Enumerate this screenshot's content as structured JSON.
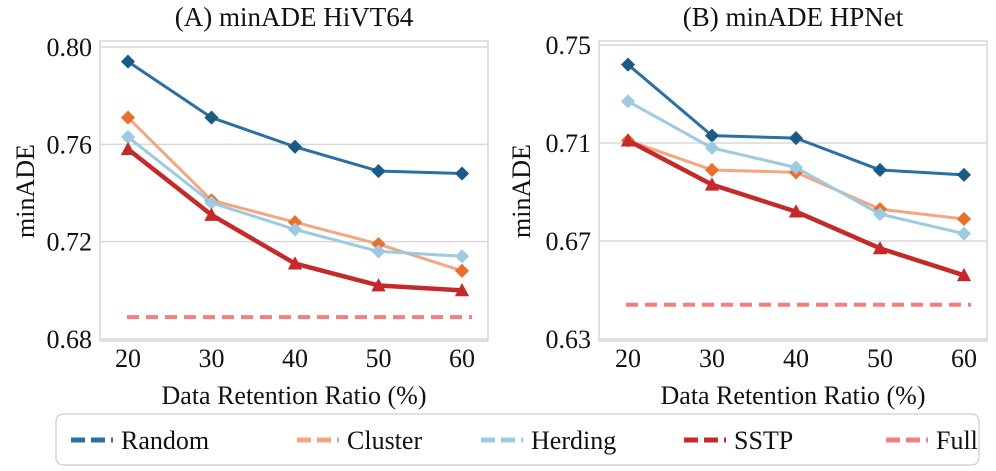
{
  "chart_data": [
    {
      "type": "line",
      "title": "(A) minADE HiVT64",
      "xlabel": "Data Retention Ratio (%)",
      "ylabel": "minADE",
      "x": [
        20,
        30,
        40,
        50,
        60
      ],
      "xticks": [
        "20",
        "30",
        "40",
        "50",
        "60"
      ],
      "ylim": [
        0.68,
        0.8
      ],
      "yticks": [
        "0.68",
        "0.72",
        "0.76",
        "0.80"
      ],
      "grid": true,
      "series": [
        {
          "name": "Random",
          "values": [
            0.794,
            0.771,
            0.759,
            0.749,
            0.748
          ]
        },
        {
          "name": "Cluster",
          "values": [
            0.771,
            0.737,
            0.728,
            0.719,
            0.708
          ]
        },
        {
          "name": "Herding",
          "values": [
            0.763,
            0.736,
            0.725,
            0.716,
            0.714
          ]
        },
        {
          "name": "SSTP",
          "values": [
            0.758,
            0.731,
            0.711,
            0.702,
            0.7
          ]
        },
        {
          "name": "Full",
          "values": [
            0.689,
            0.689,
            0.689,
            0.689,
            0.689
          ]
        }
      ]
    },
    {
      "type": "line",
      "title": "(B) minADE HPNet",
      "xlabel": "Data Retention Ratio (%)",
      "ylabel": "minADE",
      "x": [
        20,
        30,
        40,
        50,
        60
      ],
      "xticks": [
        "20",
        "30",
        "40",
        "50",
        "60"
      ],
      "ylim": [
        0.63,
        0.75
      ],
      "yticks": [
        "0.63",
        "0.67",
        "0.71",
        "0.75"
      ],
      "grid": true,
      "series": [
        {
          "name": "Random",
          "values": [
            0.742,
            0.713,
            0.712,
            0.699,
            0.697
          ]
        },
        {
          "name": "Cluster",
          "values": [
            0.711,
            0.699,
            0.698,
            0.683,
            0.679
          ]
        },
        {
          "name": "Herding",
          "values": [
            0.727,
            0.708,
            0.7,
            0.681,
            0.673
          ]
        },
        {
          "name": "SSTP",
          "values": [
            0.711,
            0.693,
            0.682,
            0.667,
            0.656
          ]
        },
        {
          "name": "Full",
          "values": [
            0.644,
            0.644,
            0.644,
            0.644,
            0.644
          ]
        }
      ]
    }
  ],
  "legend": {
    "position": "bottom",
    "items": [
      {
        "name": "Random",
        "color": "#2b6fa3"
      },
      {
        "name": "Cluster",
        "color": "#f4a582"
      },
      {
        "name": "Herding",
        "color": "#9ecae1"
      },
      {
        "name": "SSTP",
        "color": "#c42a2a"
      },
      {
        "name": "Full",
        "color": "#f08080"
      }
    ]
  },
  "series_style": {
    "Random": {
      "line": "#2b6fa3",
      "marker": "#1a5a86",
      "width": 3,
      "dash": "",
      "marker_shape": "diamond"
    },
    "Cluster": {
      "line": "#f4a582",
      "marker": "#e8702a",
      "width": 3,
      "dash": "",
      "marker_shape": "diamond"
    },
    "Herding": {
      "line": "#9ecae1",
      "marker": "#9ecae1",
      "width": 3,
      "dash": "",
      "marker_shape": "diamond"
    },
    "SSTP": {
      "line": "#c42a2a",
      "marker": "#c42a2a",
      "width": 4.5,
      "dash": "",
      "marker_shape": "triangle"
    },
    "Full": {
      "line": "#f08080",
      "marker": "#f08080",
      "width": 4,
      "dash": "12 7",
      "marker_shape": "none"
    }
  }
}
